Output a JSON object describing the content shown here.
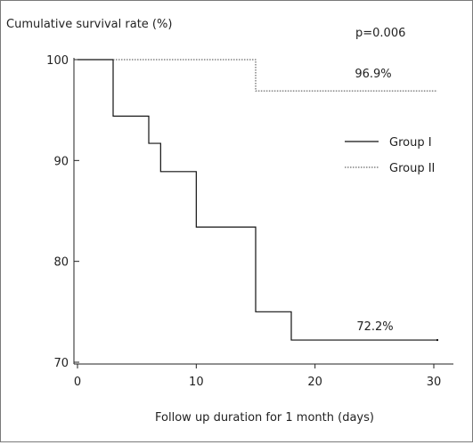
{
  "chart_data": {
    "type": "line",
    "step": true,
    "ylabel": "Cumulative survival rate (%)",
    "xlabel": "Follow up duration for 1 month (days)",
    "p_value": "p=0.006",
    "xlim": [
      0,
      32
    ],
    "ylim": [
      70,
      100
    ],
    "xticks": [
      0,
      10,
      20,
      30
    ],
    "yticks": [
      70,
      80,
      90,
      100
    ],
    "grid": false,
    "legend": "right",
    "series": [
      {
        "name": "Group I",
        "style": "solid",
        "color": "#111111",
        "x": [
          0,
          3,
          6,
          7,
          10,
          15,
          18,
          30.3
        ],
        "y": [
          100,
          94.4,
          91.7,
          88.9,
          83.4,
          75.0,
          72.2,
          72.2
        ],
        "end_label": "72.2%"
      },
      {
        "name": "Group II",
        "style": "dotted",
        "color": "#444444",
        "x": [
          3,
          15,
          30.3
        ],
        "y": [
          100,
          96.9,
          96.9
        ],
        "end_label": "96.9%"
      }
    ]
  }
}
